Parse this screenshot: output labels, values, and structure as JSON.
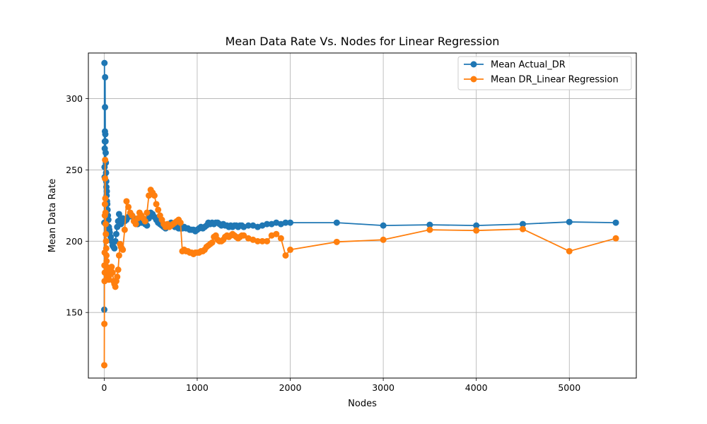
{
  "chart_data": {
    "type": "line",
    "title": "Mean Data Rate Vs. Nodes for Linear Regression",
    "xlabel": "Nodes",
    "ylabel": "Mean Data Rate",
    "xlim": [
      -170,
      5720
    ],
    "ylim": [
      104,
      332
    ],
    "xticks": [
      0,
      1000,
      2000,
      3000,
      4000,
      5000
    ],
    "yticks": [
      150,
      200,
      250,
      300
    ],
    "grid": true,
    "legend_position": "top-right",
    "series": [
      {
        "name": "Mean Actual_DR",
        "color": "#1f77b4",
        "x": [
          1,
          2,
          3,
          4,
          5,
          6,
          7,
          8,
          9,
          10,
          12,
          14,
          16,
          18,
          20,
          22,
          24,
          26,
          28,
          30,
          33,
          36,
          40,
          45,
          50,
          55,
          60,
          70,
          80,
          90,
          100,
          110,
          120,
          130,
          140,
          150,
          160,
          170,
          180,
          190,
          200,
          220,
          240,
          260,
          280,
          300,
          320,
          340,
          360,
          380,
          400,
          420,
          440,
          460,
          480,
          500,
          520,
          540,
          560,
          580,
          600,
          620,
          640,
          660,
          680,
          700,
          720,
          740,
          760,
          780,
          800,
          820,
          840,
          860,
          880,
          900,
          920,
          940,
          960,
          980,
          1000,
          1020,
          1040,
          1060,
          1080,
          1100,
          1120,
          1140,
          1160,
          1180,
          1200,
          1220,
          1240,
          1260,
          1280,
          1300,
          1320,
          1340,
          1360,
          1380,
          1400,
          1420,
          1440,
          1460,
          1480,
          1500,
          1550,
          1600,
          1650,
          1700,
          1750,
          1800,
          1850,
          1900,
          1950,
          2000,
          2500,
          3000,
          3500,
          4000,
          4500,
          5000,
          5500
        ],
        "y": [
          152,
          213,
          325,
          252,
          245,
          265,
          270,
          277,
          294,
          315,
          275,
          270,
          262,
          255,
          248,
          242,
          238,
          232,
          235,
          228,
          226,
          222,
          218,
          215,
          210,
          208,
          206,
          203,
          200,
          197,
          196,
          195,
          200,
          205,
          210,
          214,
          219,
          215,
          212,
          214,
          216,
          214,
          215,
          217,
          219,
          218,
          216,
          214,
          212,
          215,
          213,
          214,
          212,
          211,
          216,
          220,
          219,
          217,
          215,
          213,
          212,
          211,
          210,
          209,
          211,
          212,
          213,
          211,
          210,
          210,
          209,
          209,
          209,
          210,
          209,
          209,
          208,
          208,
          208,
          207,
          208,
          209,
          210,
          209,
          210,
          211,
          213,
          212,
          213,
          212,
          213,
          213,
          212,
          211,
          212,
          211,
          211,
          210,
          211,
          210,
          211,
          211,
          210,
          211,
          211,
          210,
          211,
          211,
          210,
          211,
          212,
          212,
          213,
          212,
          213,
          213,
          213,
          211,
          211.5,
          211,
          212,
          213.5,
          213
        ]
      },
      {
        "name": "Mean DR_Linear Regression",
        "color": "#ff7f0e",
        "x": [
          1,
          2,
          3,
          4,
          5,
          6,
          7,
          8,
          9,
          10,
          12,
          14,
          16,
          18,
          20,
          22,
          24,
          26,
          28,
          30,
          33,
          36,
          40,
          45,
          50,
          55,
          60,
          70,
          80,
          90,
          100,
          110,
          120,
          130,
          140,
          150,
          160,
          170,
          180,
          190,
          200,
          220,
          240,
          260,
          280,
          300,
          320,
          340,
          360,
          380,
          400,
          420,
          440,
          460,
          480,
          500,
          520,
          540,
          560,
          580,
          600,
          620,
          640,
          660,
          680,
          700,
          720,
          740,
          760,
          780,
          800,
          820,
          840,
          860,
          880,
          900,
          920,
          940,
          960,
          980,
          1000,
          1020,
          1040,
          1060,
          1080,
          1100,
          1120,
          1140,
          1160,
          1180,
          1200,
          1220,
          1240,
          1260,
          1280,
          1300,
          1320,
          1340,
          1360,
          1380,
          1400,
          1420,
          1440,
          1460,
          1480,
          1500,
          1550,
          1600,
          1650,
          1700,
          1750,
          1800,
          1850,
          1900,
          1950,
          2000,
          2500,
          3000,
          3500,
          4000,
          4500,
          5000,
          5500
        ],
        "y": [
          113,
          142,
          183,
          172,
          192,
          178,
          218,
          226,
          244,
          257,
          230,
          220,
          212,
          205,
          200,
          195,
          190,
          186,
          182,
          180,
          178,
          176,
          175,
          174,
          173,
          176,
          178,
          180,
          182,
          178,
          172,
          170,
          168,
          172,
          175,
          180,
          190,
          198,
          196,
          195,
          194,
          208,
          228,
          224,
          220,
          218,
          214,
          212,
          216,
          220,
          218,
          216,
          214,
          220,
          232,
          236,
          234,
          232,
          226,
          222,
          218,
          215,
          212,
          210,
          212,
          210,
          211,
          212,
          213,
          214,
          215,
          213,
          193,
          194,
          193,
          193,
          192,
          192,
          191,
          192,
          192,
          192,
          193,
          193,
          194,
          196,
          197,
          198,
          199,
          203,
          204,
          201,
          200,
          200,
          201,
          203,
          204,
          203,
          204,
          205,
          204,
          203,
          202,
          203,
          204,
          204,
          202,
          201,
          200,
          200,
          200,
          204,
          205,
          202,
          190,
          194,
          199.5,
          201,
          208,
          207.5,
          208.5,
          193,
          202
        ]
      }
    ]
  }
}
